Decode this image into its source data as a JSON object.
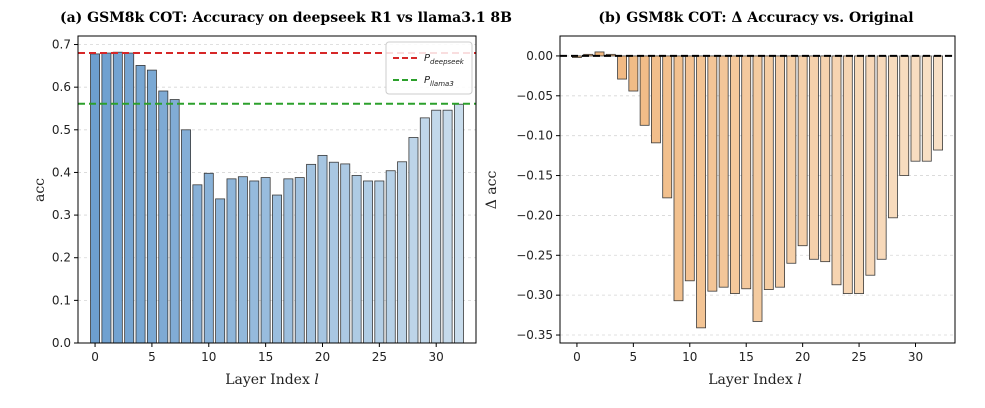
{
  "chart_data": [
    {
      "type": "bar",
      "title": "(a) GSM8k COT: Accuracy on deepseek R1 vs llama3.1 8B",
      "xlabel": "Layer Index",
      "xlabel_var": "l",
      "ylabel": "acc",
      "xlim": [
        -1.5,
        33.5
      ],
      "ylim": [
        0.0,
        0.72
      ],
      "xticks": [
        0,
        5,
        10,
        15,
        20,
        25,
        30
      ],
      "yticks": [
        0.0,
        0.1,
        0.2,
        0.3,
        0.4,
        0.5,
        0.6,
        0.7
      ],
      "ytick_labels": [
        "0.0",
        "0.1",
        "0.2",
        "0.3",
        "0.4",
        "0.5",
        "0.6",
        "0.7"
      ],
      "grid": "horizontal dashed",
      "color_start": "#6d9fcf",
      "color_end": "#c8dcec",
      "x": [
        0,
        1,
        2,
        3,
        4,
        5,
        6,
        7,
        8,
        9,
        10,
        11,
        12,
        13,
        14,
        15,
        16,
        17,
        18,
        19,
        20,
        21,
        22,
        23,
        24,
        25,
        26,
        27,
        28,
        29,
        30,
        31,
        32
      ],
      "values": [
        0.678,
        0.68,
        0.682,
        0.68,
        0.651,
        0.64,
        0.591,
        0.571,
        0.5,
        0.371,
        0.398,
        0.338,
        0.385,
        0.39,
        0.38,
        0.388,
        0.347,
        0.385,
        0.388,
        0.419,
        0.44,
        0.424,
        0.42,
        0.393,
        0.38,
        0.38,
        0.404,
        0.425,
        0.482,
        0.528,
        0.546,
        0.546,
        0.56
      ],
      "reference_lines": [
        {
          "name": "P",
          "subscript": "deepseek",
          "value": 0.68,
          "color": "#d62728",
          "style": "dashed"
        },
        {
          "name": "P",
          "subscript": "llama3",
          "value": 0.561,
          "color": "#2ca02c",
          "style": "dashed"
        }
      ],
      "legend": "top-right"
    },
    {
      "type": "bar",
      "title": "(b) GSM8k COT: Δ Accuracy vs. Original",
      "xlabel": "Layer Index",
      "xlabel_var": "l",
      "ylabel": "Δ acc",
      "xlim": [
        -1.5,
        33.5
      ],
      "ylim": [
        -0.36,
        0.025
      ],
      "xticks": [
        0,
        5,
        10,
        15,
        20,
        25,
        30
      ],
      "yticks": [
        0.0,
        -0.05,
        -0.1,
        -0.15,
        -0.2,
        -0.25,
        -0.3,
        -0.35
      ],
      "ytick_labels": [
        "0.00",
        "−0.05",
        "−0.10",
        "−0.15",
        "−0.20",
        "−0.25",
        "−0.30",
        "−0.35"
      ],
      "grid": "horizontal dashed",
      "color_start": "#f0b57a",
      "color_end": "#f8e0c6",
      "x": [
        0,
        1,
        2,
        3,
        4,
        5,
        6,
        7,
        8,
        9,
        10,
        11,
        12,
        13,
        14,
        15,
        16,
        17,
        18,
        19,
        20,
        21,
        22,
        23,
        24,
        25,
        26,
        27,
        28,
        29,
        30,
        31,
        32
      ],
      "values": [
        -0.002,
        0.002,
        0.005,
        0.002,
        -0.029,
        -0.044,
        -0.087,
        -0.109,
        -0.178,
        -0.307,
        -0.282,
        -0.341,
        -0.295,
        -0.29,
        -0.298,
        -0.292,
        -0.333,
        -0.293,
        -0.29,
        -0.26,
        -0.238,
        -0.255,
        -0.258,
        -0.287,
        -0.298,
        -0.298,
        -0.275,
        -0.255,
        -0.203,
        -0.15,
        -0.132,
        -0.132,
        -0.118
      ],
      "reference_lines": [
        {
          "name": "zero",
          "value": 0.0,
          "color": "#000000",
          "style": "dashed"
        }
      ]
    }
  ]
}
